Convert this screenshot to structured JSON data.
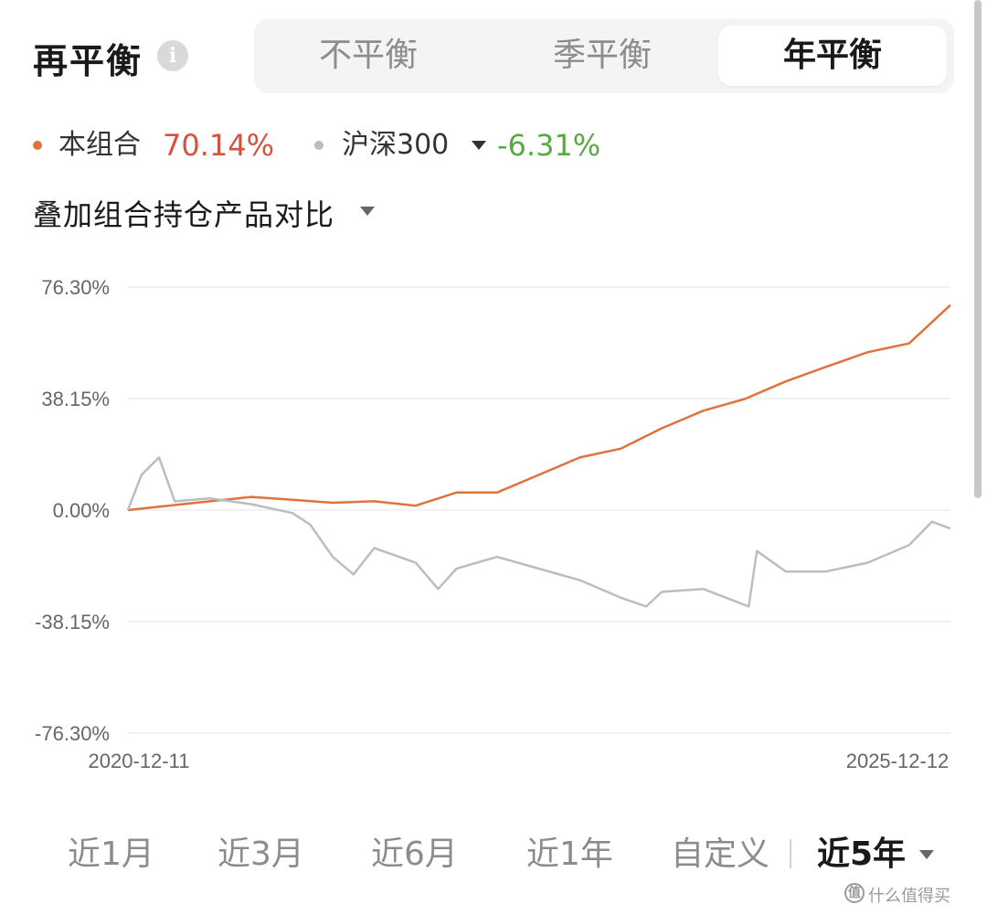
{
  "header": {
    "title": "再平衡",
    "info_icon": "i",
    "tabs": [
      {
        "label": "不平衡",
        "active": false
      },
      {
        "label": "季平衡",
        "active": false
      },
      {
        "label": "年平衡",
        "active": true
      }
    ]
  },
  "legend": {
    "portfolio": {
      "label": "本组合",
      "value": "70.14%",
      "color": "#e0723c"
    },
    "benchmark": {
      "label": "沪深300",
      "value": "-6.31%",
      "color": "#b8bec4",
      "value_color": "#5aa845"
    }
  },
  "overlay_selector": {
    "label": "叠加组合持仓产品对比"
  },
  "chart_data": {
    "type": "line",
    "x_start": "2020-12-11",
    "x_end": "2025-12-12",
    "x_tick_labels": [
      "2020-12-11",
      "2025-12-12"
    ],
    "y_tick_labels": [
      "76.30%",
      "38.15%",
      "0.00%",
      "-38.15%",
      "-76.30%"
    ],
    "ylim": [
      -76.3,
      76.3
    ],
    "grid": true,
    "series": [
      {
        "name": "本组合",
        "color": "#e0723c",
        "x": [
          "2020-12-11",
          "2021-03-11",
          "2021-06-11",
          "2021-09-11",
          "2021-12-11",
          "2022-03-11",
          "2022-06-11",
          "2022-09-11",
          "2022-12-11",
          "2023-03-11",
          "2023-06-11",
          "2023-09-11",
          "2023-12-11",
          "2024-03-11",
          "2024-06-11",
          "2024-09-11",
          "2024-12-11",
          "2025-03-11",
          "2025-06-11",
          "2025-09-11",
          "2025-12-12"
        ],
        "values": [
          0,
          1.5,
          3,
          4.5,
          3.5,
          2.5,
          3,
          1.5,
          6,
          6,
          12,
          18,
          21,
          28,
          34,
          38,
          44,
          49,
          54,
          57,
          70.14
        ]
      },
      {
        "name": "沪深300",
        "color": "#b8bec4",
        "x": [
          "2020-12-11",
          "2021-01-10",
          "2021-02-18",
          "2021-03-25",
          "2021-06-11",
          "2021-09-11",
          "2021-12-11",
          "2022-01-20",
          "2022-03-11",
          "2022-04-26",
          "2022-06-11",
          "2022-09-11",
          "2022-10-31",
          "2022-12-11",
          "2023-03-11",
          "2023-06-11",
          "2023-09-11",
          "2023-12-11",
          "2024-02-05",
          "2024-03-11",
          "2024-06-11",
          "2024-09-20",
          "2024-10-08",
          "2024-12-11",
          "2025-03-11",
          "2025-06-11",
          "2025-09-11",
          "2025-11-01",
          "2025-12-12"
        ],
        "values": [
          0,
          12,
          18,
          3,
          4,
          2,
          -1,
          -5,
          -16,
          -22,
          -13,
          -18,
          -27,
          -20,
          -16,
          -20,
          -24,
          -30,
          -33,
          -28,
          -27,
          -33,
          -14,
          -21,
          -21,
          -18,
          -12,
          -4,
          -6.31
        ]
      }
    ]
  },
  "periods": [
    {
      "label": "近1月",
      "active": false
    },
    {
      "label": "近3月",
      "active": false
    },
    {
      "label": "近6月",
      "active": false
    },
    {
      "label": "近1年",
      "active": false
    },
    {
      "label": "自定义",
      "active": false
    },
    {
      "label": "近5年",
      "active": true
    }
  ],
  "watermark": {
    "icon": "值",
    "text": "什么值得买"
  }
}
